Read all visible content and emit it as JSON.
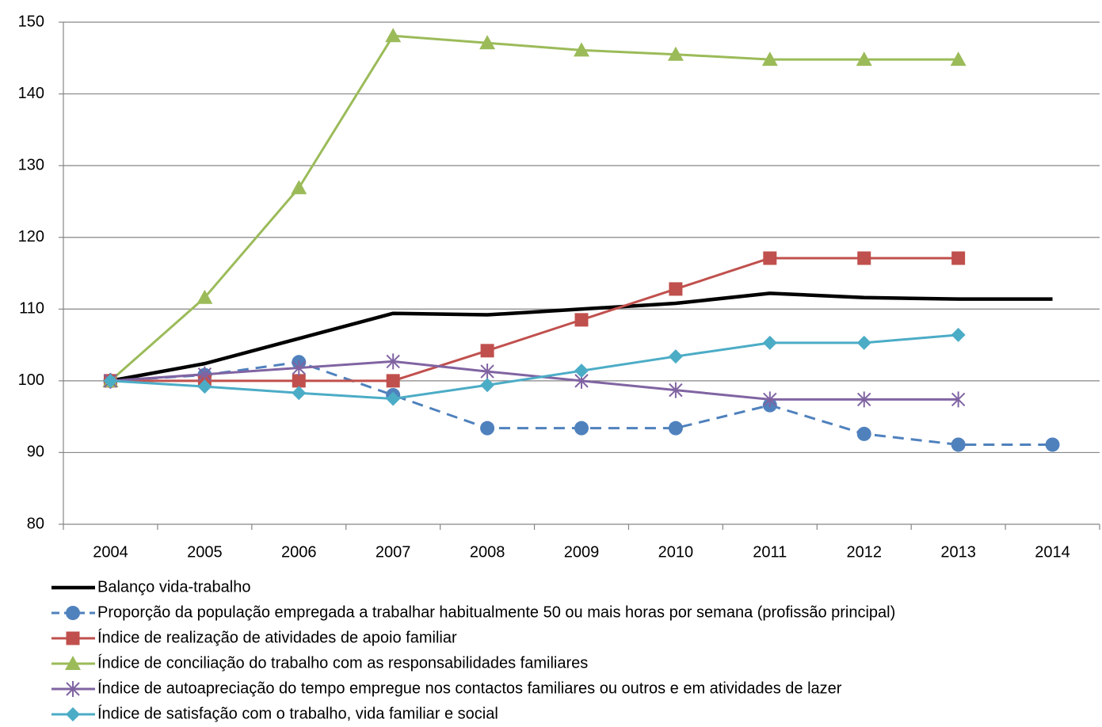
{
  "chart_data": {
    "type": "line",
    "categories": [
      "2004",
      "2005",
      "2006",
      "2007",
      "2008",
      "2009",
      "2010",
      "2011",
      "2012",
      "2013",
      "2014"
    ],
    "ylim": [
      80,
      150
    ],
    "yticks": [
      80,
      90,
      100,
      110,
      120,
      130,
      140,
      150
    ],
    "grid": true,
    "legend": "bottom",
    "series": [
      {
        "name": "Balanço vida-trabalho",
        "color": "#000000",
        "marker": "none",
        "dash": false,
        "width": 4.5,
        "values": [
          100,
          102.4,
          105.9,
          109.4,
          109.2,
          110,
          110.8,
          112.2,
          111.6,
          111.4,
          111.4
        ]
      },
      {
        "name": "Proporção da população empregada a trabalhar habitualmente 50 ou mais horas por semana (profissão principal)",
        "color": "#4f81bd",
        "marker": "circle",
        "dash": true,
        "width": 3,
        "values": [
          100,
          100.8,
          102.6,
          98,
          93.4,
          93.4,
          93.4,
          96.6,
          92.6,
          91.1,
          91.1
        ]
      },
      {
        "name": "Índice de realização de atividades de apoio familiar",
        "color": "#c0504d",
        "marker": "square",
        "dash": false,
        "width": 3,
        "values": [
          100,
          100,
          100,
          100,
          104.2,
          108.5,
          112.8,
          117.1,
          117.1,
          117.1,
          null
        ]
      },
      {
        "name": "Índice de conciliação do trabalho com as responsabilidades familiares",
        "color": "#9bbb59",
        "marker": "triangle",
        "dash": false,
        "width": 3,
        "values": [
          100,
          111.6,
          126.9,
          148.1,
          147.1,
          146.1,
          145.5,
          144.8,
          144.8,
          144.8,
          null
        ]
      },
      {
        "name": "Índice de autoapreciação do tempo empregue nos contactos familiares ou outros e em atividades de lazer",
        "color": "#8064a2",
        "marker": "star",
        "dash": false,
        "width": 3,
        "values": [
          100,
          100.9,
          101.8,
          102.7,
          101.3,
          100,
          98.7,
          97.4,
          97.4,
          97.4,
          null
        ]
      },
      {
        "name": "Índice de satisfação com o trabalho, vida familiar e social",
        "color": "#4bacc6",
        "marker": "diamond",
        "dash": false,
        "width": 3,
        "values": [
          100,
          99.2,
          98.3,
          97.5,
          99.4,
          101.4,
          103.4,
          105.3,
          105.3,
          106.4,
          null
        ]
      }
    ]
  }
}
